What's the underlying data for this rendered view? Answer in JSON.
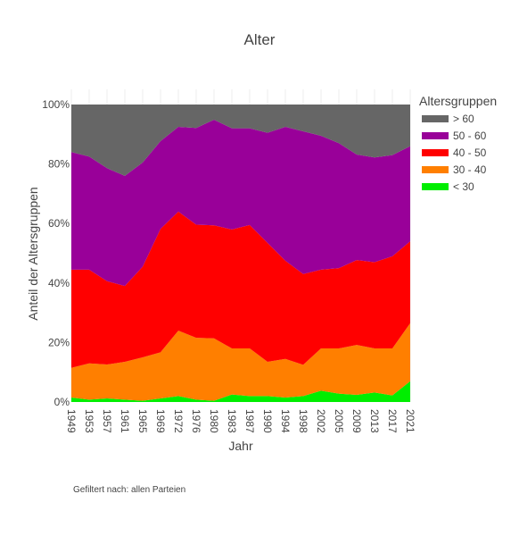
{
  "chart_data": {
    "type": "area",
    "stacked": true,
    "normalized": true,
    "title": "Alter",
    "xlabel": "Jahr",
    "ylabel": "Anteil der Altersgruppen",
    "ylim": [
      0,
      100
    ],
    "y_ticks": [
      "0%",
      "20%",
      "40%",
      "60%",
      "80%",
      "100%"
    ],
    "x": [
      "1949",
      "1953",
      "1957",
      "1961",
      "1965",
      "1969",
      "1972",
      "1976",
      "1980",
      "1983",
      "1987",
      "1990",
      "1994",
      "1998",
      "2002",
      "2005",
      "2009",
      "2013",
      "2017",
      "2021"
    ],
    "legend_title": "Altersgruppen",
    "legend_position": "top-right",
    "series": [
      {
        "name": "< 30",
        "color": "#00ee00",
        "values": [
          1.5,
          0.8,
          1.2,
          0.8,
          0.4,
          1.2,
          2.0,
          0.8,
          0.4,
          2.5,
          2.0,
          2.0,
          1.5,
          2.0,
          3.8,
          2.8,
          2.4,
          3.2,
          2.2,
          7.0
        ]
      },
      {
        "name": "30 - 40",
        "color": "#ff7f00",
        "values": [
          10.0,
          12.2,
          11.4,
          12.7,
          14.6,
          15.5,
          22.0,
          20.8,
          21.0,
          15.5,
          16.0,
          11.5,
          13.0,
          10.5,
          14.2,
          15.2,
          16.8,
          14.8,
          15.8,
          19.5
        ]
      },
      {
        "name": "40 - 50",
        "color": "#ff0000",
        "values": [
          33.0,
          31.5,
          28.0,
          25.5,
          30.5,
          41.5,
          40.0,
          38.0,
          38.0,
          40.0,
          41.5,
          40.0,
          33.0,
          30.5,
          26.5,
          27.0,
          28.5,
          29.0,
          31.0,
          27.5
        ]
      },
      {
        "name": "50 - 60",
        "color": "#990099",
        "values": [
          39.5,
          38.0,
          38.0,
          37.0,
          35.0,
          29.5,
          28.5,
          32.5,
          35.5,
          34.0,
          32.5,
          37.0,
          45.0,
          48.0,
          45.0,
          42.0,
          35.5,
          35.2,
          34.0,
          32.0
        ]
      },
      {
        "name": "> 60",
        "color": "#666666",
        "values": [
          16.0,
          17.5,
          21.4,
          24.0,
          19.5,
          12.3,
          7.5,
          7.9,
          5.1,
          8.0,
          8.0,
          9.5,
          7.5,
          9.0,
          10.5,
          13.0,
          16.8,
          17.8,
          17.0,
          14.0
        ]
      }
    ],
    "annotation": "Gefiltert nach: allen Parteien",
    "grid": true
  }
}
